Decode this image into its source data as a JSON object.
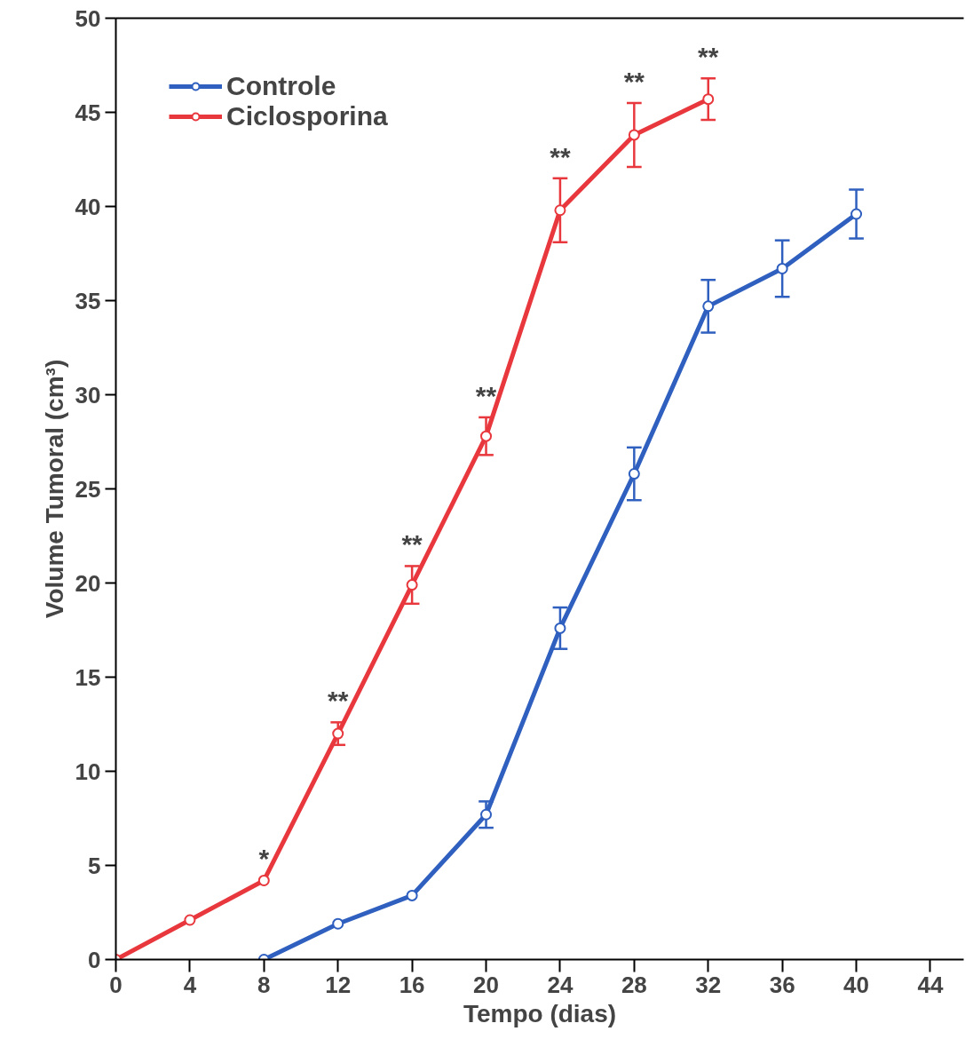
{
  "chart_data": {
    "type": "line",
    "xlabel": "Tempo (dias)",
    "ylabel": "Volume Tumoral (cm³)",
    "xlim": [
      0,
      45.8
    ],
    "xticks": [
      0,
      4,
      8,
      12,
      16,
      20,
      24,
      28,
      32,
      36,
      40,
      44
    ],
    "ylim": [
      0,
      50
    ],
    "yticks": [
      0,
      5,
      10,
      15,
      20,
      25,
      30,
      35,
      40,
      45,
      50
    ],
    "grid": false,
    "legend": "top left",
    "marker": "circle",
    "line_style": "solid",
    "series": [
      {
        "name": "Controle",
        "color": "#2f5fbf",
        "x": [
          8,
          12,
          16,
          20,
          24,
          28,
          32,
          36,
          40
        ],
        "values": [
          0,
          1.9,
          3.4,
          7.7,
          17.6,
          25.8,
          34.7,
          36.7,
          39.6
        ],
        "errors": [
          null,
          null,
          null,
          0.7,
          1.1,
          1.4,
          1.4,
          1.5,
          1.3
        ]
      },
      {
        "name": "Ciclosporina",
        "color": "#e8383d",
        "x": [
          0,
          4,
          8,
          12,
          16,
          20,
          24,
          28,
          32
        ],
        "values": [
          0,
          2.1,
          4.2,
          12.0,
          19.9,
          27.8,
          39.8,
          43.8,
          45.7
        ],
        "errors": [
          null,
          null,
          null,
          0.6,
          1.0,
          1.0,
          1.7,
          1.7,
          1.1
        ]
      }
    ],
    "annotations": [
      {
        "text": "*",
        "x": 8,
        "y": 4.2
      },
      {
        "text": "**",
        "x": 12,
        "y": 12.0
      },
      {
        "text": "**",
        "x": 16,
        "y": 19.9
      },
      {
        "text": "**",
        "x": 20,
        "y": 27.8
      },
      {
        "text": "**",
        "x": 24,
        "y": 39.8
      },
      {
        "text": "**",
        "x": 28,
        "y": 43.8
      },
      {
        "text": "**",
        "x": 32,
        "y": 45.7
      }
    ]
  }
}
